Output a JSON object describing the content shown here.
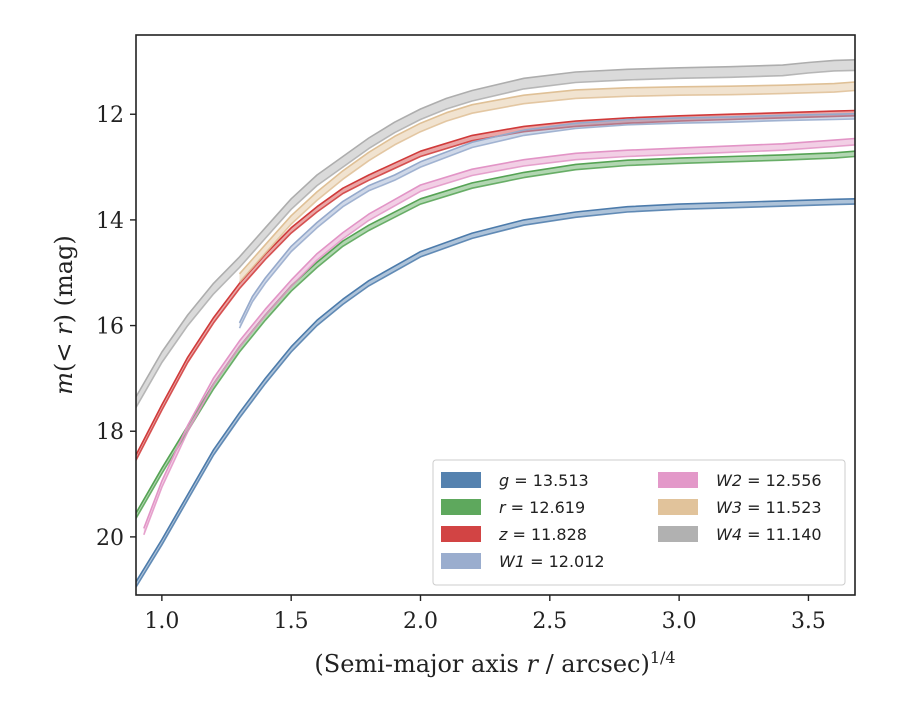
{
  "chart_data": {
    "type": "line",
    "xlabel": "(Semi-major axis r / arcsec)^{1/4}",
    "xlabel_parts": [
      "(Semi-major axis ",
      "r",
      " / arcsec)",
      "1/4"
    ],
    "ylabel_parts": [
      "m",
      "(< ",
      "r",
      ") (mag)"
    ],
    "xlim": [
      0.9,
      3.68
    ],
    "ylim": [
      21.1,
      10.5
    ],
    "y_inverted": true,
    "x_ticks": [
      1.0,
      1.5,
      2.0,
      2.5,
      3.0,
      3.5
    ],
    "x_tick_labels": [
      "1.0",
      "1.5",
      "2.0",
      "2.5",
      "3.0",
      "3.5"
    ],
    "y_ticks": [
      12,
      14,
      16,
      18,
      20
    ],
    "y_tick_labels": [
      "12",
      "14",
      "16",
      "18",
      "20"
    ],
    "grid": false,
    "legend_placement": "lower-right",
    "series": [
      {
        "name": "g",
        "band": "g",
        "value": "13.513",
        "color": "#4c7bab",
        "band_width_mag": 0.1,
        "x": [
          0.9,
          1.0,
          1.1,
          1.2,
          1.3,
          1.4,
          1.5,
          1.6,
          1.7,
          1.8,
          2.0,
          2.2,
          2.4,
          2.6,
          2.8,
          3.0,
          3.2,
          3.4,
          3.6,
          3.68
        ],
        "y": [
          20.9,
          20.1,
          19.25,
          18.4,
          17.7,
          17.05,
          16.45,
          15.95,
          15.55,
          15.2,
          14.65,
          14.3,
          14.05,
          13.9,
          13.8,
          13.75,
          13.72,
          13.69,
          13.66,
          13.65
        ]
      },
      {
        "name": "r",
        "band": "r",
        "value": "12.619",
        "color": "#55a354",
        "band_width_mag": 0.1,
        "x": [
          0.9,
          1.0,
          1.1,
          1.2,
          1.3,
          1.4,
          1.5,
          1.6,
          1.7,
          1.8,
          2.0,
          2.2,
          2.4,
          2.6,
          2.8,
          3.0,
          3.2,
          3.4,
          3.6,
          3.68
        ],
        "y": [
          19.6,
          18.75,
          17.95,
          17.15,
          16.45,
          15.85,
          15.3,
          14.85,
          14.45,
          14.15,
          13.65,
          13.35,
          13.15,
          13.0,
          12.92,
          12.88,
          12.85,
          12.82,
          12.78,
          12.75
        ]
      },
      {
        "name": "z",
        "band": "z",
        "value": "11.828",
        "color": "#d03a3a",
        "band_width_mag": 0.1,
        "x": [
          0.9,
          1.0,
          1.1,
          1.2,
          1.3,
          1.4,
          1.5,
          1.6,
          1.7,
          1.8,
          2.0,
          2.2,
          2.4,
          2.6,
          2.8,
          3.0,
          3.2,
          3.4,
          3.6,
          3.68
        ],
        "y": [
          18.5,
          17.55,
          16.65,
          15.9,
          15.25,
          14.7,
          14.2,
          13.8,
          13.45,
          13.2,
          12.75,
          12.45,
          12.28,
          12.18,
          12.12,
          12.08,
          12.05,
          12.02,
          11.99,
          11.98
        ]
      },
      {
        "name": "W1",
        "band": "W1",
        "value": "12.012",
        "color": "#95a9cb",
        "band_width_mag": 0.1,
        "x": [
          1.3,
          1.35,
          1.4,
          1.5,
          1.6,
          1.7,
          1.8,
          1.9,
          2.0,
          2.2,
          2.4,
          2.6,
          2.8,
          3.0,
          3.2,
          3.4,
          3.6,
          3.68
        ],
        "y": [
          16.0,
          15.5,
          15.15,
          14.55,
          14.1,
          13.7,
          13.4,
          13.2,
          12.95,
          12.58,
          12.35,
          12.22,
          12.15,
          12.12,
          12.1,
          12.07,
          12.05,
          12.04
        ]
      },
      {
        "name": "W2",
        "band": "W2",
        "value": "12.556",
        "color": "#e294c6",
        "band_width_mag": 0.12,
        "x": [
          0.93,
          1.0,
          1.1,
          1.2,
          1.3,
          1.4,
          1.5,
          1.6,
          1.7,
          1.8,
          2.0,
          2.2,
          2.4,
          2.6,
          2.8,
          3.0,
          3.2,
          3.4,
          3.6,
          3.68
        ],
        "y": [
          19.9,
          19.0,
          17.95,
          17.05,
          16.35,
          15.75,
          15.2,
          14.7,
          14.3,
          13.95,
          13.4,
          13.1,
          12.92,
          12.8,
          12.74,
          12.7,
          12.66,
          12.62,
          12.55,
          12.52
        ]
      },
      {
        "name": "W3",
        "band": "W3",
        "value": "11.523",
        "color": "#dfc096",
        "band_width_mag": 0.16,
        "x": [
          1.3,
          1.4,
          1.5,
          1.6,
          1.7,
          1.8,
          1.9,
          2.0,
          2.1,
          2.2,
          2.4,
          2.6,
          2.8,
          3.0,
          3.2,
          3.4,
          3.6,
          3.68
        ],
        "y": [
          15.1,
          14.55,
          14.0,
          13.55,
          13.15,
          12.8,
          12.5,
          12.25,
          12.05,
          11.9,
          11.72,
          11.62,
          11.58,
          11.56,
          11.55,
          11.53,
          11.5,
          11.47
        ]
      },
      {
        "name": "W4",
        "band": "W4",
        "value": "11.140",
        "color": "#adadad",
        "band_width_mag": 0.2,
        "x": [
          0.9,
          1.0,
          1.1,
          1.2,
          1.3,
          1.4,
          1.5,
          1.6,
          1.7,
          1.8,
          1.9,
          2.0,
          2.1,
          2.2,
          2.4,
          2.6,
          2.8,
          3.0,
          3.2,
          3.4,
          3.5,
          3.6,
          3.68
        ],
        "y": [
          17.45,
          16.6,
          15.9,
          15.3,
          14.8,
          14.25,
          13.7,
          13.25,
          12.9,
          12.55,
          12.25,
          12.0,
          11.8,
          11.65,
          11.42,
          11.3,
          11.25,
          11.22,
          11.2,
          11.17,
          11.12,
          11.08,
          11.07
        ]
      }
    ]
  }
}
